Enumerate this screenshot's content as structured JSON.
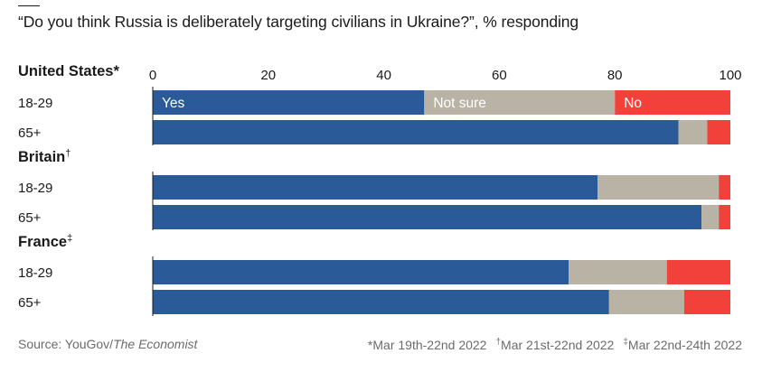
{
  "title": "“Do you think Russia is deliberately targeting civilians in Ukraine?”, % responding",
  "source": "Source: YouGov/",
  "source_italic": "The Economist",
  "footnotes": [
    {
      "mark": "*",
      "text": "Mar 19th-22nd 2022"
    },
    {
      "mark": "†",
      "text": "Mar 21st-22nd 2022"
    },
    {
      "mark": "‡",
      "text": "Mar 22nd-24th 2022"
    }
  ],
  "colors": {
    "Yes": "#2a5b98",
    "Not sure": "#b9b3a5",
    "No": "#f2403a"
  },
  "chart_data": {
    "type": "bar",
    "orientation": "horizontal",
    "stacked": true,
    "xlim": [
      0,
      100
    ],
    "xticks": [
      "0",
      "20",
      "40",
      "60",
      "80",
      "100"
    ],
    "series_names": [
      "Yes",
      "Not sure",
      "No"
    ],
    "groups": [
      {
        "name": "United States",
        "mark": "*",
        "rows": [
          {
            "label": "18-29",
            "values": [
              47,
              33,
              20
            ]
          },
          {
            "label": "65+",
            "values": [
              91,
              5,
              4
            ]
          }
        ]
      },
      {
        "name": "Britain",
        "mark": "†",
        "rows": [
          {
            "label": "18-29",
            "values": [
              77,
              21,
              2
            ]
          },
          {
            "label": "65+",
            "values": [
              95,
              3,
              2
            ]
          }
        ]
      },
      {
        "name": "France",
        "mark": "‡",
        "rows": [
          {
            "label": "18-29",
            "values": [
              72,
              17,
              11
            ]
          },
          {
            "label": "65+",
            "values": [
              79,
              13,
              8
            ]
          }
        ]
      }
    ]
  }
}
